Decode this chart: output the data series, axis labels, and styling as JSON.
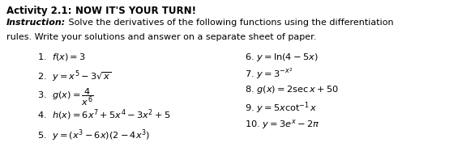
{
  "bg_color": "#ffffff",
  "left_items": [
    "1.  $f(x) = 3$",
    "2.  $y = x^5 - 3\\sqrt{x}$",
    "3.  $g(x) = \\dfrac{4}{x^6}$",
    "4.  $h(x) = 6x^7+5x^4-3x^2+5$",
    "5.  $y = (x^3-6x)(2-4x^3)$"
  ],
  "right_items": [
    "6. $y = \\ln(4-5x)$",
    "7. $y = 3^{-x^2}$",
    "8. $g(x) = 2\\sec x + 50$",
    "9. $y = 5x\\cot^{-1}x$",
    "10. $y = 3e^x - 2\\pi$"
  ],
  "title_prefix": "Activity 2.1: ",
  "title_suffix": "NOW IT'S YOUR TURN!",
  "instr_label": "Instruction:",
  "instr_body1": " Solve the derivatives of the following functions using the differentiation",
  "instr_body2": "rules. Write your solutions and answer on a separate sheet of paper.",
  "font_size_title": 8.5,
  "font_size_body": 8.0,
  "font_size_items": 8.2
}
